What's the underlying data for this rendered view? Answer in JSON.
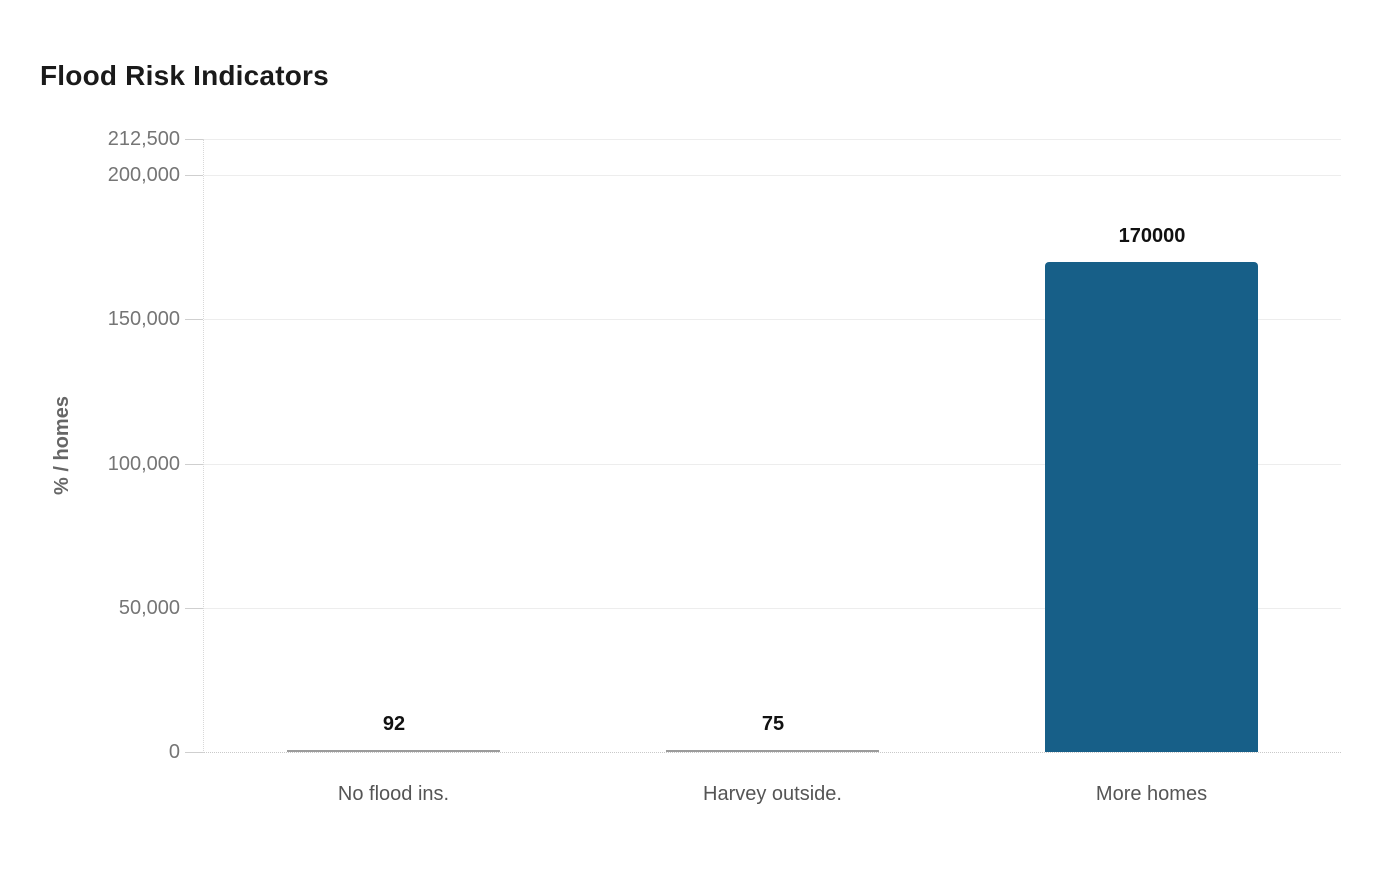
{
  "page": {
    "background_color": "#ffffff"
  },
  "chart_data": {
    "type": "bar",
    "title": "Flood Risk Indicators",
    "xlabel": "",
    "ylabel": "% / homes",
    "categories": [
      "No flood ins.",
      "Harvey outside.",
      "More homes"
    ],
    "values": [
      92,
      75,
      170000
    ],
    "value_labels": [
      "92",
      "75",
      "170000"
    ],
    "ylim": [
      0,
      212500
    ],
    "yticks": [
      {
        "value": 0,
        "label": "0"
      },
      {
        "value": 50000,
        "label": "50,000"
      },
      {
        "value": 100000,
        "label": "100,000"
      },
      {
        "value": 150000,
        "label": "150,000"
      },
      {
        "value": 200000,
        "label": "200,000"
      },
      {
        "value": 212500,
        "label": "212,500"
      }
    ],
    "grid": true,
    "legend_position": "none",
    "bar_color": "#175F88",
    "small_bar_color": "#9B9B9B",
    "title_color": "#1a1a1a",
    "axis_tick_color": "#757575",
    "category_label_color": "#555555",
    "value_label_color": "#111111"
  }
}
